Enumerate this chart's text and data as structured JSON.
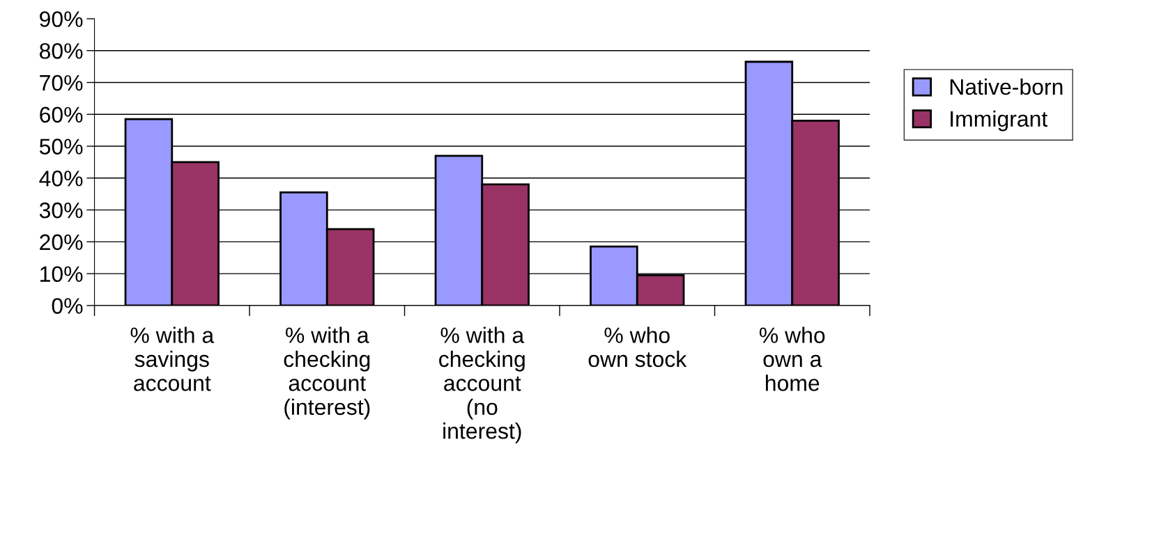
{
  "chart_data": {
    "type": "bar",
    "categories": [
      "% with a\nsavings\naccount",
      "% with a\nchecking\naccount\n(interest)",
      "% with a\nchecking\naccount\n(no\ninterest)",
      "% who\nown stock",
      "% who\nown a\nhome"
    ],
    "series": [
      {
        "name": "Native-born",
        "color": "#9999ff",
        "values": [
          58.5,
          35.5,
          47,
          18.5,
          76.5
        ]
      },
      {
        "name": "Immigrant",
        "color": "#993366",
        "values": [
          45,
          24,
          38,
          9.5,
          58
        ]
      }
    ],
    "ylim": [
      0,
      90
    ],
    "yticks": [
      {
        "value": 0,
        "label": "0%"
      },
      {
        "value": 10,
        "label": "10%"
      },
      {
        "value": 20,
        "label": "20%"
      },
      {
        "value": 30,
        "label": "30%"
      },
      {
        "value": 40,
        "label": "40%"
      },
      {
        "value": 50,
        "label": "50%"
      },
      {
        "value": 60,
        "label": "60%"
      },
      {
        "value": 70,
        "label": "70%"
      },
      {
        "value": 80,
        "label": "80%"
      },
      {
        "value": 90,
        "label": "90%"
      }
    ],
    "grid": "y",
    "legend": "right"
  }
}
